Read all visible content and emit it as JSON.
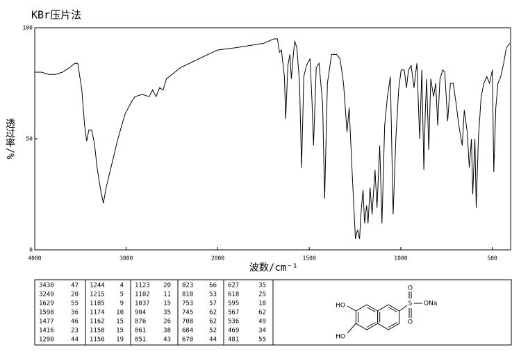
{
  "chart_data": {
    "type": "line",
    "title": "KBr压片法",
    "xlabel": "波数/cm⁻¹",
    "ylabel": "透过率/%",
    "x": [
      4000,
      3924,
      3848,
      3773,
      3697,
      3621,
      3561,
      3530,
      3485,
      3455,
      3432,
      3409,
      3379,
      3348,
      3318,
      3280,
      3250,
      3220,
      3167,
      3091,
      3015,
      2939,
      2902,
      2826,
      2750,
      2712,
      2674,
      2636,
      2598,
      2561,
      2409,
      2258,
      2106,
      2000,
      1902,
      1826,
      1750,
      1693,
      1674,
      1663,
      1652,
      1636,
      1629,
      1617,
      1606,
      1598,
      1591,
      1580,
      1568,
      1553,
      1542,
      1530,
      1515,
      1496,
      1485,
      1477,
      1462,
      1447,
      1427,
      1416,
      1401,
      1378,
      1351,
      1332,
      1313,
      1294,
      1282,
      1267,
      1248,
      1237,
      1225,
      1218,
      1206,
      1198,
      1187,
      1179,
      1168,
      1157,
      1141,
      1130,
      1115,
      1103,
      1088,
      1073,
      1057,
      1042,
      1027,
      1012,
      998,
      981,
      969,
      958,
      943,
      928,
      912,
      897,
      885,
      874,
      866,
      859,
      847,
      836,
      821,
      809,
      798,
      786,
      771,
      760,
      744,
      729,
      714,
      698,
      683,
      664,
      653,
      637,
      626,
      614,
      607,
      595,
      588,
      576,
      561,
      546,
      530,
      515,
      500,
      492,
      481,
      469,
      454,
      438,
      423,
      404
    ],
    "series": [
      {
        "color": "#000000",
        "values": [
          80,
          80,
          79,
          79,
          80,
          82,
          84,
          84,
          72,
          56,
          49,
          54,
          54,
          48,
          37,
          27,
          21,
          28,
          37,
          50,
          61,
          67,
          69,
          70,
          69,
          72,
          69,
          73,
          72,
          77,
          82,
          85,
          88,
          90,
          91,
          92,
          93,
          95,
          95,
          89,
          90,
          78,
          59,
          83,
          88,
          77,
          84,
          94,
          91,
          75,
          37,
          78,
          83,
          86,
          67,
          47,
          82,
          84,
          66,
          23,
          75,
          88,
          88,
          86,
          75,
          53,
          64,
          37,
          5,
          9,
          5,
          16,
          27,
          12,
          20,
          12,
          28,
          16,
          36,
          19,
          47,
          12,
          56,
          69,
          78,
          16,
          50,
          72,
          81,
          81,
          73,
          81,
          83,
          73,
          84,
          50,
          81,
          36,
          62,
          77,
          45,
          77,
          69,
          75,
          56,
          77,
          81,
          80,
          58,
          75,
          75,
          66,
          56,
          47,
          63,
          53,
          37,
          50,
          25,
          50,
          19,
          50,
          69,
          75,
          78,
          75,
          81,
          35,
          64,
          75,
          78,
          84,
          91,
          93
        ]
      }
    ],
    "xlim": [
      4000,
      400
    ],
    "xticks": [
      4000,
      3000,
      2000,
      1500,
      1000,
      500
    ],
    "ylim": [
      0,
      100
    ],
    "yticks": [
      0,
      50,
      100
    ]
  },
  "peak_table": {
    "columns": [
      [
        [
          3430,
          47
        ],
        [
          3249,
          20
        ],
        [
          1629,
          55
        ],
        [
          1598,
          36
        ],
        [
          1477,
          46
        ],
        [
          1416,
          23
        ],
        [
          1290,
          44
        ]
      ],
      [
        [
          1244,
          4
        ],
        [
          1215,
          5
        ],
        [
          1185,
          9
        ],
        [
          1174,
          10
        ],
        [
          1162,
          15
        ],
        [
          1158,
          15
        ],
        [
          1150,
          19
        ]
      ],
      [
        [
          1123,
          20
        ],
        [
          1102,
          11
        ],
        [
          1037,
          15
        ],
        [
          904,
          35
        ],
        [
          876,
          26
        ],
        [
          861,
          38
        ],
        [
          851,
          43
        ]
      ],
      [
        [
          823,
          66
        ],
        [
          810,
          53
        ],
        [
          753,
          57
        ],
        [
          745,
          62
        ],
        [
          708,
          62
        ],
        [
          684,
          52
        ],
        [
          670,
          44
        ]
      ],
      [
        [
          627,
          35
        ],
        [
          618,
          25
        ],
        [
          595,
          18
        ],
        [
          567,
          62
        ],
        [
          536,
          49
        ],
        [
          469,
          34
        ],
        [
          481,
          55
        ]
      ]
    ]
  },
  "structure": {
    "labels": [
      "HO",
      "HO",
      "O",
      "S",
      "O",
      "ONa"
    ]
  }
}
